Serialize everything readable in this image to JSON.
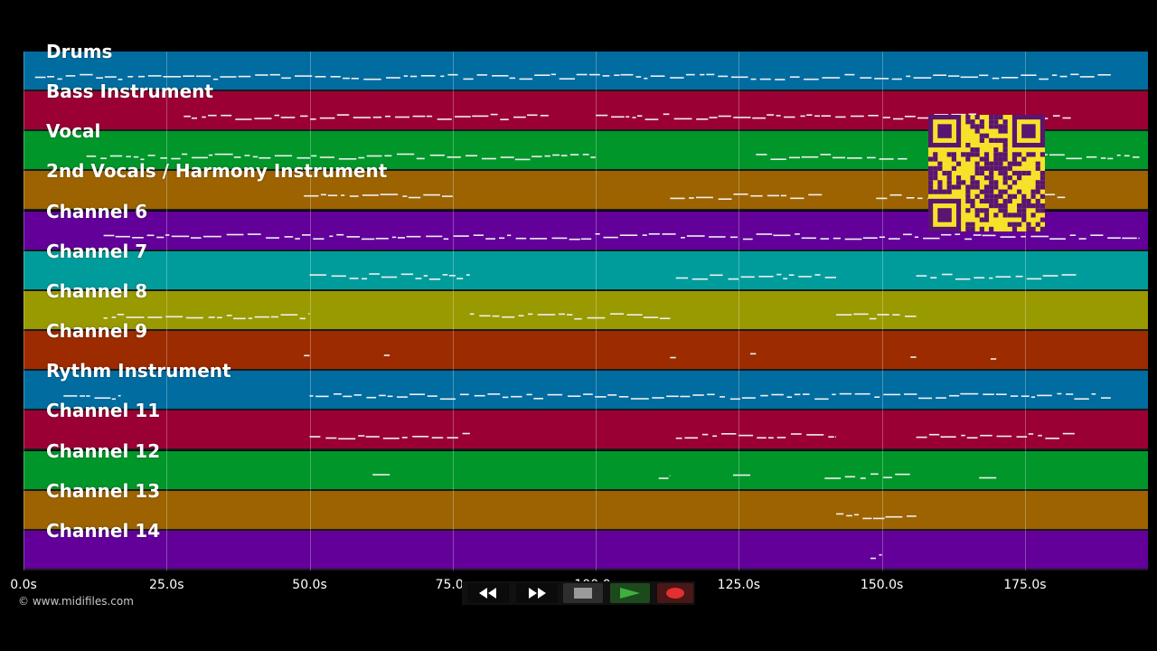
{
  "tracks": [
    {
      "name": "Drums",
      "color": "#006ca0"
    },
    {
      "name": "Bass Instrument",
      "color": "#9a0034"
    },
    {
      "name": "Vocal",
      "color": "#00962a"
    },
    {
      "name": "2nd Vocals / Harmony Instrument",
      "color": "#9c6300"
    },
    {
      "name": "Channel 6",
      "color": "#620099"
    },
    {
      "name": "Channel 7",
      "color": "#009c9c"
    },
    {
      "name": "Channel 8",
      "color": "#999900"
    },
    {
      "name": "Channel 9",
      "color": "#9c2b00"
    },
    {
      "name": "Rythm Instrument",
      "color": "#006ca0"
    },
    {
      "name": "Channel 11",
      "color": "#9a0034"
    },
    {
      "name": "Channel 12",
      "color": "#00962a"
    },
    {
      "name": "Channel 13",
      "color": "#9c6300"
    },
    {
      "name": "Channel 14",
      "color": "#620099"
    }
  ],
  "time_axis": {
    "ticks": [
      "0.0s",
      "25.0s",
      "50.0s",
      "75.0s",
      "100.0s",
      "125.0s",
      "150.0s",
      "175.0s"
    ],
    "tick_values": [
      0,
      25,
      50,
      75,
      100,
      125,
      150,
      175
    ],
    "max_seconds": 196.5
  },
  "copyright": "© www.midifiles.com",
  "transport": {
    "rewind": {
      "icon": "rewind-icon"
    },
    "fast_forward": {
      "icon": "fast-forward-icon"
    },
    "stop": {
      "icon": "stop-icon"
    },
    "play": {
      "icon": "play-icon",
      "color": "#3fb03f"
    },
    "record": {
      "icon": "record-icon",
      "color": "#e03030"
    }
  },
  "qr_code": {
    "color": "#f7e22a",
    "module_color": "#5a1570"
  },
  "note_regions": [
    {
      "track": 0,
      "segments": [
        [
          2,
          190
        ]
      ]
    },
    {
      "track": 1,
      "segments": [
        [
          28,
          92
        ],
        [
          100,
          183
        ]
      ]
    },
    {
      "track": 2,
      "segments": [
        [
          11,
          100
        ],
        [
          128,
          155
        ],
        [
          165,
          195
        ]
      ]
    },
    {
      "track": 3,
      "segments": [
        [
          49,
          75
        ],
        [
          113,
          140
        ],
        [
          149,
          182
        ]
      ]
    },
    {
      "track": 4,
      "segments": [
        [
          14,
          195
        ]
      ]
    },
    {
      "track": 5,
      "segments": [
        [
          50,
          78
        ],
        [
          114,
          142
        ],
        [
          156,
          184
        ]
      ]
    },
    {
      "track": 6,
      "segments": [
        [
          14,
          50
        ],
        [
          78,
          113
        ],
        [
          142,
          156
        ]
      ]
    },
    {
      "track": 7,
      "segments": [
        [
          49,
          50
        ],
        [
          63,
          64
        ],
        [
          113,
          114
        ],
        [
          127,
          128
        ],
        [
          155,
          156
        ],
        [
          169,
          170
        ]
      ]
    },
    {
      "track": 8,
      "segments": [
        [
          7,
          17
        ],
        [
          50,
          190
        ]
      ]
    },
    {
      "track": 9,
      "segments": [
        [
          50,
          78
        ],
        [
          114,
          142
        ],
        [
          156,
          184
        ]
      ]
    },
    {
      "track": 10,
      "segments": [
        [
          61,
          64
        ],
        [
          111,
          113
        ],
        [
          124,
          127
        ],
        [
          140,
          155
        ],
        [
          167,
          170
        ]
      ]
    },
    {
      "track": 11,
      "segments": [
        [
          142,
          156
        ]
      ]
    },
    {
      "track": 12,
      "segments": [
        [
          148,
          150
        ]
      ]
    }
  ]
}
